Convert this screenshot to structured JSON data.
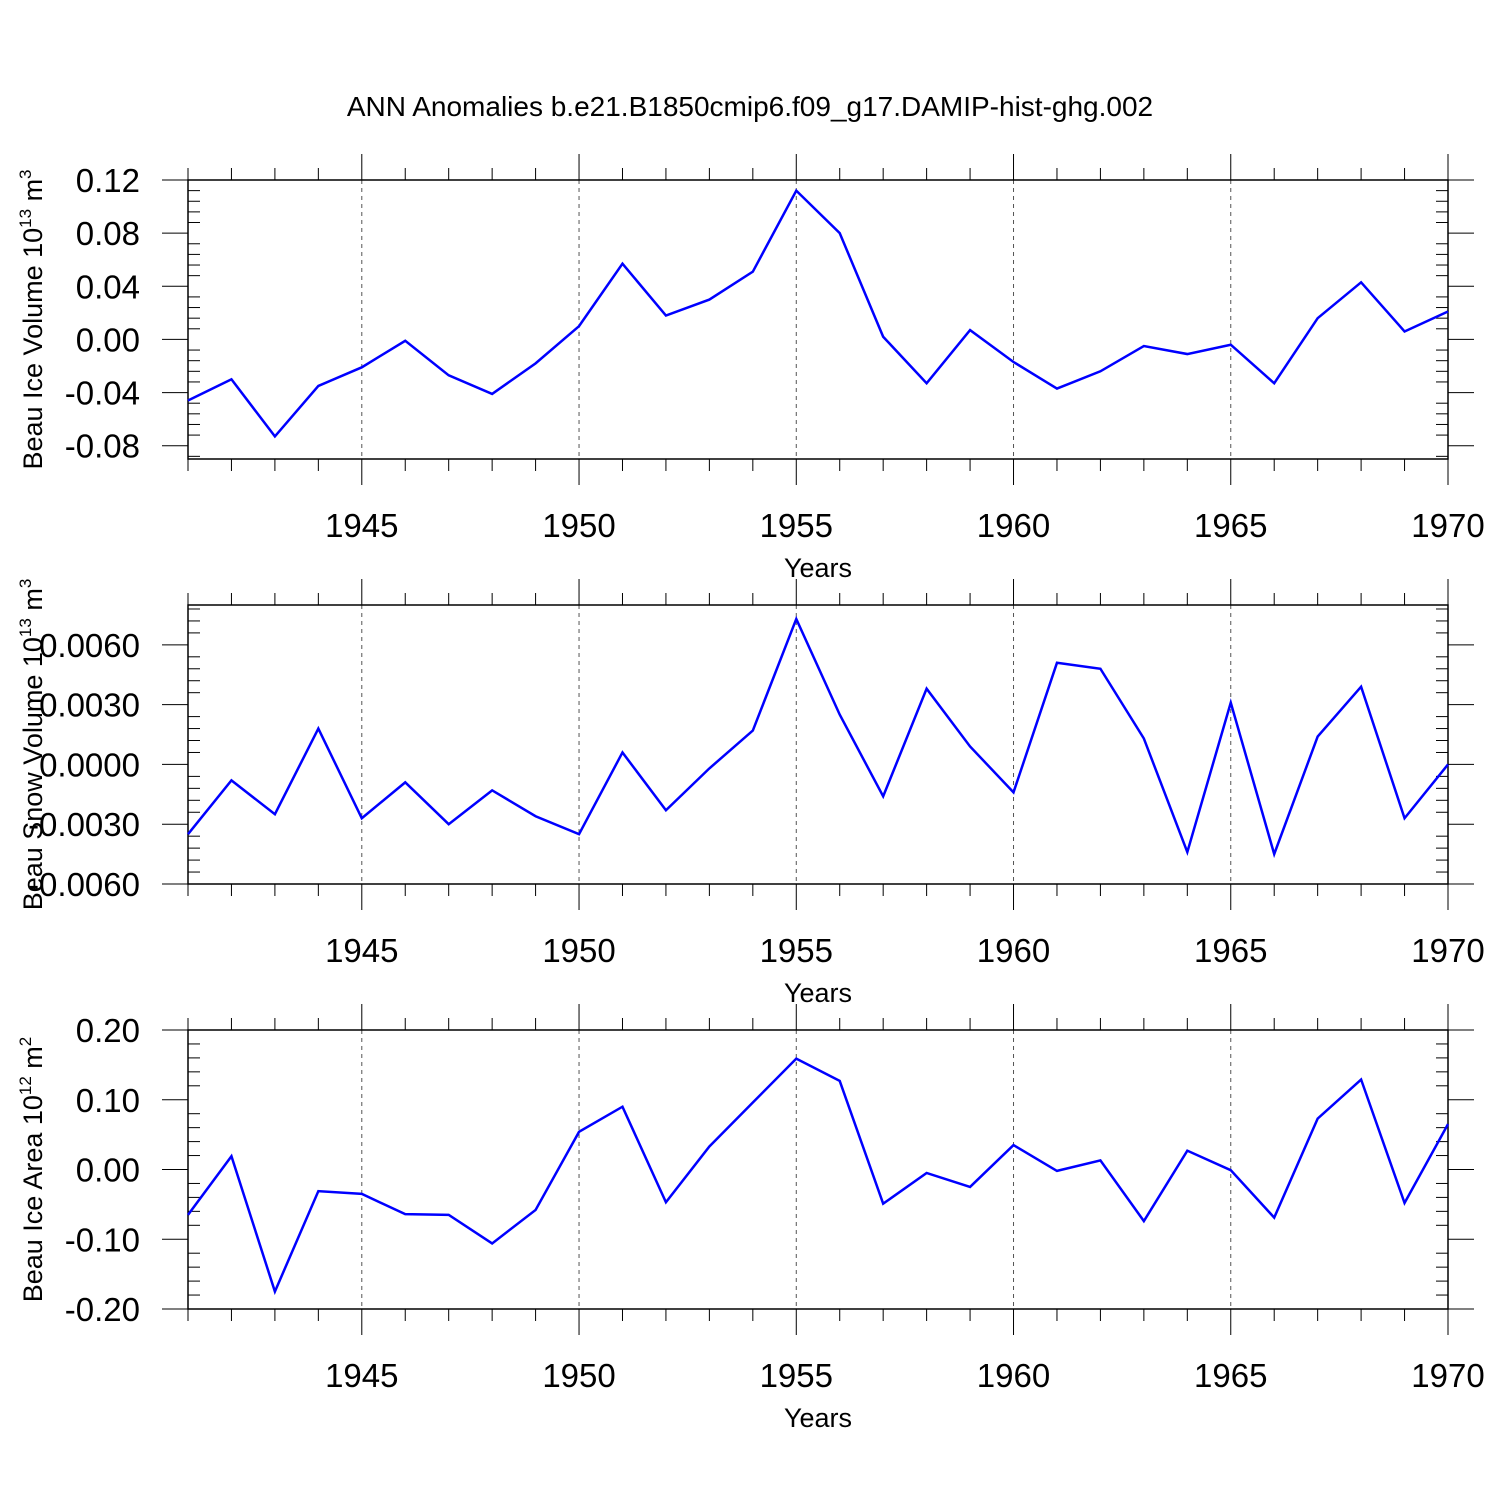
{
  "figure": {
    "title": "ANN Anomalies b.e21.B1850cmip6.f09_g17.DAMIP-hist-ghg.002",
    "line_color": "#0000ff",
    "grid_color": "#555555"
  },
  "chart_data": [
    {
      "type": "line",
      "title": "",
      "xlabel": "Years",
      "ylabel": {
        "main": "Beau Ice Volume 10",
        "exp": "13",
        "unit": " m",
        "unit_exp": "3"
      },
      "xlim": [
        1941,
        1970
      ],
      "ylim": [
        -0.09,
        0.12
      ],
      "yticks": [
        0.12,
        0.08,
        0.04,
        0.0,
        -0.04,
        -0.08
      ],
      "ytick_labels": [
        "0.12",
        "0.08",
        "0.04",
        "0.00",
        "-0.04",
        "-0.08"
      ],
      "xticks": [
        1945,
        1950,
        1955,
        1960,
        1965,
        1970
      ],
      "xtick_labels": [
        "1945",
        "1950",
        "1955",
        "1960",
        "1965",
        "1970"
      ],
      "grid": "vertical dashed at labeled years",
      "x": [
        1941,
        1942,
        1943,
        1944,
        1945,
        1946,
        1947,
        1948,
        1949,
        1950,
        1951,
        1952,
        1953,
        1954,
        1955,
        1956,
        1957,
        1958,
        1959,
        1960,
        1961,
        1962,
        1963,
        1964,
        1965,
        1966,
        1967,
        1968,
        1969,
        1970
      ],
      "values": [
        -0.046,
        -0.03,
        -0.073,
        -0.035,
        -0.021,
        -0.001,
        -0.027,
        -0.041,
        -0.018,
        0.01,
        0.057,
        0.018,
        0.03,
        0.051,
        0.112,
        0.08,
        0.002,
        -0.033,
        0.007,
        -0.017,
        -0.037,
        -0.024,
        -0.005,
        -0.011,
        -0.004,
        -0.033,
        0.016,
        0.043,
        0.006,
        0.021
      ]
    },
    {
      "type": "line",
      "title": "",
      "xlabel": "Years",
      "ylabel": {
        "main": "Beau Snow Volume 10",
        "exp": "13",
        "unit": " m",
        "unit_exp": "3"
      },
      "xlim": [
        1941,
        1970
      ],
      "ylim": [
        -0.006,
        0.008
      ],
      "yticks": [
        0.006,
        0.003,
        0.0,
        -0.003,
        -0.006
      ],
      "ytick_labels": [
        "0.0060",
        "0.0030",
        "0.0000",
        "-0.0030",
        "-0.0060"
      ],
      "xticks": [
        1945,
        1950,
        1955,
        1960,
        1965,
        1970
      ],
      "xtick_labels": [
        "1945",
        "1950",
        "1955",
        "1960",
        "1965",
        "1970"
      ],
      "grid": "vertical dashed at labeled years",
      "x": [
        1941,
        1942,
        1943,
        1944,
        1945,
        1946,
        1947,
        1948,
        1949,
        1950,
        1951,
        1952,
        1953,
        1954,
        1955,
        1956,
        1957,
        1958,
        1959,
        1960,
        1961,
        1962,
        1963,
        1964,
        1965,
        1966,
        1967,
        1968,
        1969,
        1970
      ],
      "values": [
        -0.0035,
        -0.0008,
        -0.0025,
        0.0018,
        -0.0027,
        -0.0009,
        -0.003,
        -0.0013,
        -0.0026,
        -0.0035,
        0.0006,
        -0.0023,
        -0.0002,
        0.0017,
        0.0073,
        0.0025,
        -0.0016,
        0.0038,
        0.0009,
        -0.0014,
        0.0051,
        0.0048,
        0.0013,
        -0.0044,
        0.0031,
        -0.0045,
        0.0014,
        0.0039,
        -0.0027,
        0.0
      ]
    },
    {
      "type": "line",
      "title": "",
      "xlabel": "Years",
      "ylabel": {
        "main": "Beau Ice Area 10",
        "exp": "12",
        "unit": " m",
        "unit_exp": "2"
      },
      "xlim": [
        1941,
        1970
      ],
      "ylim": [
        -0.2,
        0.2
      ],
      "yticks": [
        0.2,
        0.1,
        0.0,
        -0.1,
        -0.2
      ],
      "ytick_labels": [
        "0.20",
        "0.10",
        "0.00",
        "-0.10",
        "-0.20"
      ],
      "xticks": [
        1945,
        1950,
        1955,
        1960,
        1965,
        1970
      ],
      "xtick_labels": [
        "1945",
        "1950",
        "1955",
        "1960",
        "1965",
        "1970"
      ],
      "grid": "vertical dashed at labeled years",
      "x": [
        1941,
        1942,
        1943,
        1944,
        1945,
        1946,
        1947,
        1948,
        1949,
        1950,
        1951,
        1952,
        1953,
        1954,
        1955,
        1956,
        1957,
        1958,
        1959,
        1960,
        1961,
        1962,
        1963,
        1964,
        1965,
        1966,
        1967,
        1968,
        1969,
        1970
      ],
      "values": [
        -0.065,
        0.019,
        -0.175,
        -0.031,
        -0.035,
        -0.064,
        -0.065,
        -0.106,
        -0.058,
        0.054,
        0.09,
        -0.047,
        0.033,
        0.096,
        0.159,
        0.127,
        -0.049,
        -0.005,
        -0.025,
        0.035,
        -0.002,
        0.013,
        -0.074,
        0.027,
        -0.001,
        -0.069,
        0.073,
        0.129,
        -0.048,
        0.065
      ]
    }
  ]
}
